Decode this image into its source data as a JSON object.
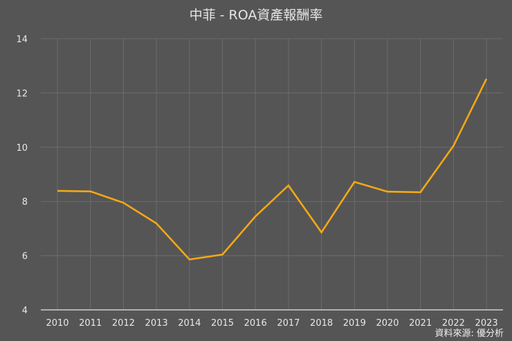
{
  "title": "中菲 - ROA資產報酬率",
  "source": "資料來源: 優分析",
  "colors": {
    "background": "#555555",
    "line": "#f5a816",
    "grid": "#6c6c6c",
    "axis": "#cfcfcf",
    "text": "#e8e8e8"
  },
  "chart_data": {
    "type": "line",
    "title": "中菲 - ROA資產報酬率",
    "xlabel": "",
    "ylabel": "",
    "categories": [
      "2010",
      "2011",
      "2012",
      "2013",
      "2014",
      "2015",
      "2016",
      "2017",
      "2018",
      "2019",
      "2020",
      "2021",
      "2022",
      "2023"
    ],
    "series": [
      {
        "name": "ROA資產報酬率",
        "color": "#f5a816",
        "values": [
          8.39,
          8.37,
          7.95,
          7.19,
          5.86,
          6.04,
          7.45,
          8.59,
          6.86,
          8.72,
          8.36,
          8.34,
          10.05,
          12.52
        ]
      }
    ],
    "ylim": [
      4,
      14
    ],
    "yticks": [
      4,
      6,
      8,
      10,
      12,
      14
    ],
    "grid": true,
    "legend": "none",
    "annotations": [
      "資料來源: 優分析"
    ]
  }
}
